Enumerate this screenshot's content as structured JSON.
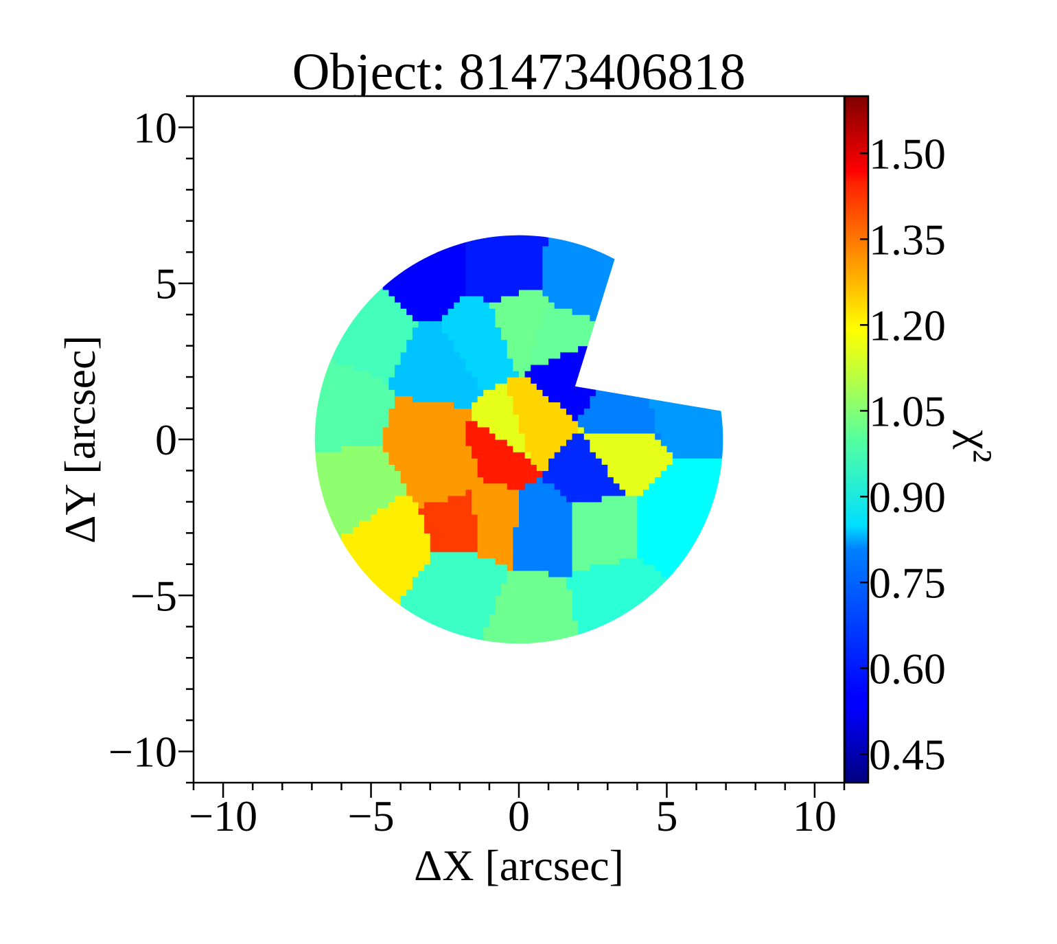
{
  "chart_data": {
    "type": "heatmap",
    "title": "Object: 81473406818",
    "xlabel": "ΔX [arcsec]",
    "ylabel": "ΔY [arcsec]",
    "xlim": [
      -11,
      11
    ],
    "ylim": [
      -11,
      11
    ],
    "x_ticks": [
      -10,
      -5,
      0,
      5,
      10
    ],
    "x_tick_labels": [
      "−10",
      "−5",
      "0",
      "5",
      "10"
    ],
    "y_ticks": [
      10,
      5,
      0,
      -5,
      -10
    ],
    "y_tick_labels": [
      "10",
      "5",
      "0",
      "−5",
      "−10"
    ],
    "colorbar": {
      "label": "χ²",
      "range": [
        0.4,
        1.6
      ],
      "ticks": [
        1.5,
        1.35,
        1.2,
        1.05,
        0.9,
        0.75,
        0.6,
        0.45
      ],
      "tick_labels": [
        "1.50",
        "1.35",
        "1.20",
        "1.05",
        "0.90",
        "0.75",
        "0.60",
        "0.45"
      ],
      "colormap": "jet"
    },
    "bins": [
      {
        "region": "outer-ring",
        "x": -3.0,
        "y": 5.3,
        "value": 0.55
      },
      {
        "region": "outer-ring",
        "x": -0.5,
        "y": 5.4,
        "value": 0.58
      },
      {
        "region": "outer-ring",
        "x": 2.0,
        "y": 5.0,
        "value": 0.72
      },
      {
        "region": "outer-ring",
        "x": -4.9,
        "y": 3.4,
        "value": 0.93
      },
      {
        "region": "outer-ring",
        "x": -5.8,
        "y": 1.0,
        "value": 0.95
      },
      {
        "region": "outer-ring",
        "x": -5.5,
        "y": -1.5,
        "value": 1.02
      },
      {
        "region": "outer-ring",
        "x": -4.3,
        "y": -3.3,
        "value": 1.17
      },
      {
        "region": "outer-ring",
        "x": -2.1,
        "y": -4.8,
        "value": 0.92
      },
      {
        "region": "outer-ring",
        "x": 0.5,
        "y": -5.8,
        "value": 0.98
      },
      {
        "region": "outer-ring",
        "x": 3.2,
        "y": -5.3,
        "value": 0.9
      },
      {
        "region": "outer-ring",
        "x": 5.4,
        "y": -2.5,
        "value": 0.85
      },
      {
        "region": "outer-ring",
        "x": 5.5,
        "y": 1.3,
        "value": 0.73
      },
      {
        "region": "outer-ring",
        "x": 3.5,
        "y": 0.8,
        "value": 0.7
      },
      {
        "region": "inner",
        "x": 0.0,
        "y": 3.8,
        "value": 0.98
      },
      {
        "region": "inner",
        "x": 1.4,
        "y": 3.3,
        "value": 0.97
      },
      {
        "region": "inner",
        "x": -1.3,
        "y": 3.3,
        "value": 0.8
      },
      {
        "region": "inner",
        "x": -2.8,
        "y": 2.3,
        "value": 0.78
      },
      {
        "region": "inner",
        "x": 1.8,
        "y": 2.2,
        "value": 0.55
      },
      {
        "region": "inner",
        "x": 3.4,
        "y": -0.4,
        "value": 1.12
      },
      {
        "region": "inner",
        "x": -3.1,
        "y": 0.1,
        "value": 1.27
      },
      {
        "region": "inner",
        "x": -2.3,
        "y": -1.1,
        "value": 1.27
      },
      {
        "region": "inner",
        "x": -1.9,
        "y": -2.5,
        "value": 1.38
      },
      {
        "region": "inner",
        "x": -1.1,
        "y": -2.4,
        "value": 1.27
      },
      {
        "region": "inner",
        "x": 1.0,
        "y": -2.7,
        "value": 0.7
      },
      {
        "region": "inner",
        "x": 2.6,
        "y": -2.7,
        "value": 0.97
      },
      {
        "region": "inner",
        "x": 2.3,
        "y": -1.2,
        "value": 0.6
      },
      {
        "region": "core",
        "x": -0.6,
        "y": -0.4,
        "value": 1.42
      },
      {
        "region": "core",
        "x": -0.2,
        "y": 0.2,
        "value": 1.12
      },
      {
        "region": "core",
        "x": 0.4,
        "y": 0.4,
        "value": 1.2
      }
    ]
  }
}
